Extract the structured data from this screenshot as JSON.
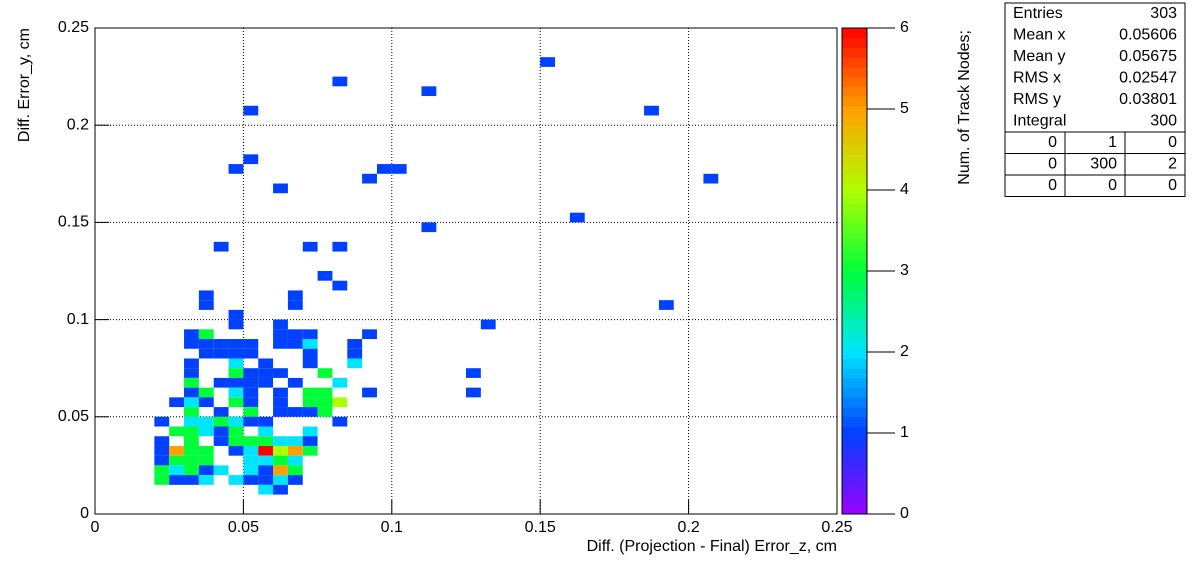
{
  "chart_data": {
    "type": "heatmap",
    "xlabel": "Diff. (Projection - Final) Error_z, cm",
    "ylabel": "Diff. Error_y, cm",
    "zlabel": "Num. of Track Nodes;",
    "xlim": [
      0,
      0.25
    ],
    "ylim": [
      0,
      0.25
    ],
    "zlim": [
      0,
      6
    ],
    "xticks": [
      0,
      0.05,
      0.1,
      0.15,
      0.2,
      0.25
    ],
    "yticks": [
      0,
      0.05,
      0.1,
      0.15,
      0.2,
      0.25
    ],
    "zticks": [
      0,
      1,
      2,
      3,
      4,
      5,
      6
    ],
    "grid": true,
    "xbin": 0.005,
    "ybin": 0.005,
    "colorscale": [
      "#9a00ff",
      "#0040ff",
      "#00e5ff",
      "#00ff3a",
      "#b0ff00",
      "#ffa000",
      "#ff0000"
    ],
    "x": [
      0.15,
      0.08,
      0.11,
      0.05,
      0.185,
      0.05,
      0.045,
      0.095,
      0.1,
      0.09,
      0.205,
      0.06,
      0.16,
      0.11,
      0.04,
      0.07,
      0.08,
      0.075,
      0.08,
      0.035,
      0.035,
      0.065,
      0.065,
      0.19,
      0.045,
      0.045,
      0.13,
      0.06,
      0.03,
      0.035,
      0.06,
      0.065,
      0.07,
      0.09,
      0.03,
      0.035,
      0.04,
      0.045,
      0.05,
      0.06,
      0.065,
      0.07,
      0.085,
      0.035,
      0.04,
      0.045,
      0.05,
      0.07,
      0.085,
      0.03,
      0.045,
      0.055,
      0.07,
      0.085,
      0.03,
      0.045,
      0.05,
      0.055,
      0.06,
      0.075,
      0.125,
      0.03,
      0.04,
      0.045,
      0.05,
      0.055,
      0.065,
      0.08,
      0.03,
      0.035,
      0.045,
      0.05,
      0.06,
      0.07,
      0.075,
      0.09,
      0.125,
      0.025,
      0.03,
      0.035,
      0.045,
      0.05,
      0.06,
      0.07,
      0.075,
      0.08,
      0.03,
      0.04,
      0.05,
      0.06,
      0.065,
      0.07,
      0.075,
      0.02,
      0.03,
      0.035,
      0.04,
      0.045,
      0.05,
      0.055,
      0.08,
      0.025,
      0.03,
      0.035,
      0.04,
      0.045,
      0.055,
      0.07,
      0.02,
      0.03,
      0.04,
      0.045,
      0.05,
      0.055,
      0.06,
      0.065,
      0.07,
      0.02,
      0.025,
      0.03,
      0.035,
      0.045,
      0.05,
      0.055,
      0.06,
      0.065,
      0.07,
      0.02,
      0.025,
      0.03,
      0.035,
      0.05,
      0.055,
      0.06,
      0.065,
      0.02,
      0.025,
      0.03,
      0.035,
      0.04,
      0.05,
      0.055,
      0.06,
      0.065,
      0.02,
      0.025,
      0.03,
      0.035,
      0.045,
      0.05,
      0.055,
      0.06,
      0.065,
      0.055,
      0.06
    ],
    "y": [
      0.23,
      0.22,
      0.215,
      0.205,
      0.205,
      0.18,
      0.175,
      0.175,
      0.175,
      0.17,
      0.17,
      0.165,
      0.15,
      0.145,
      0.135,
      0.135,
      0.135,
      0.12,
      0.115,
      0.11,
      0.105,
      0.11,
      0.105,
      0.105,
      0.1,
      0.095,
      0.095,
      0.095,
      0.09,
      0.09,
      0.09,
      0.09,
      0.09,
      0.09,
      0.085,
      0.085,
      0.085,
      0.085,
      0.085,
      0.085,
      0.085,
      0.085,
      0.085,
      0.08,
      0.08,
      0.08,
      0.08,
      0.08,
      0.08,
      0.075,
      0.075,
      0.075,
      0.075,
      0.075,
      0.07,
      0.07,
      0.07,
      0.07,
      0.07,
      0.07,
      0.07,
      0.065,
      0.065,
      0.065,
      0.065,
      0.065,
      0.065,
      0.065,
      0.06,
      0.06,
      0.06,
      0.06,
      0.06,
      0.06,
      0.06,
      0.06,
      0.06,
      0.055,
      0.055,
      0.055,
      0.055,
      0.055,
      0.055,
      0.055,
      0.055,
      0.055,
      0.05,
      0.05,
      0.05,
      0.05,
      0.05,
      0.05,
      0.05,
      0.045,
      0.045,
      0.045,
      0.045,
      0.045,
      0.045,
      0.045,
      0.045,
      0.04,
      0.04,
      0.04,
      0.04,
      0.04,
      0.04,
      0.04,
      0.035,
      0.035,
      0.035,
      0.035,
      0.035,
      0.035,
      0.035,
      0.035,
      0.035,
      0.03,
      0.03,
      0.03,
      0.03,
      0.03,
      0.03,
      0.03,
      0.03,
      0.03,
      0.03,
      0.025,
      0.025,
      0.025,
      0.025,
      0.025,
      0.025,
      0.025,
      0.025,
      0.02,
      0.02,
      0.02,
      0.02,
      0.02,
      0.02,
      0.02,
      0.02,
      0.02,
      0.015,
      0.015,
      0.015,
      0.015,
      0.015,
      0.015,
      0.015,
      0.015,
      0.015,
      0.01,
      0.01
    ],
    "values": [
      1,
      1,
      1,
      1,
      1,
      1,
      1,
      1,
      1,
      1,
      1,
      1,
      1,
      1,
      1,
      1,
      1,
      1,
      1,
      1,
      1,
      1,
      1,
      1,
      1,
      1,
      1,
      1,
      1,
      3,
      1,
      1,
      1,
      1,
      1,
      1,
      1,
      1,
      1,
      1,
      1,
      2,
      1,
      1,
      1,
      1,
      1,
      1,
      1,
      1,
      2,
      1,
      1,
      2,
      1,
      3,
      1,
      1,
      1,
      3,
      1,
      3,
      1,
      1,
      1,
      1,
      1,
      2,
      1,
      3,
      2,
      1,
      1,
      3,
      3,
      1,
      1,
      1,
      2,
      1,
      3,
      1,
      1,
      3,
      3,
      4,
      3,
      1,
      3,
      1,
      1,
      1,
      3,
      1,
      2,
      2,
      3,
      2,
      1,
      1,
      1,
      3,
      3,
      2,
      1,
      3,
      2,
      2,
      1,
      3,
      1,
      3,
      3,
      3,
      2,
      2,
      1,
      1,
      5,
      3,
      3,
      1,
      2,
      6,
      4,
      5,
      3,
      1,
      3,
      3,
      3,
      2,
      2,
      3,
      2,
      3,
      2,
      3,
      1,
      2,
      2,
      1,
      5,
      3,
      3,
      1,
      1,
      2,
      2,
      1,
      1,
      2,
      1,
      2,
      1
    ],
    "stats": [
      {
        "label": "Entries",
        "value": 303
      },
      {
        "label": "Mean x",
        "value": 0.05606
      },
      {
        "label": "Mean y",
        "value": 0.05675
      },
      {
        "label": "RMS x",
        "value": 0.02547
      },
      {
        "label": "RMS y",
        "value": 0.03801
      },
      {
        "label": "Integral",
        "value": 300
      }
    ],
    "stats_grid": [
      [
        0,
        1,
        0
      ],
      [
        0,
        300,
        2
      ],
      [
        0,
        0,
        0
      ]
    ]
  }
}
